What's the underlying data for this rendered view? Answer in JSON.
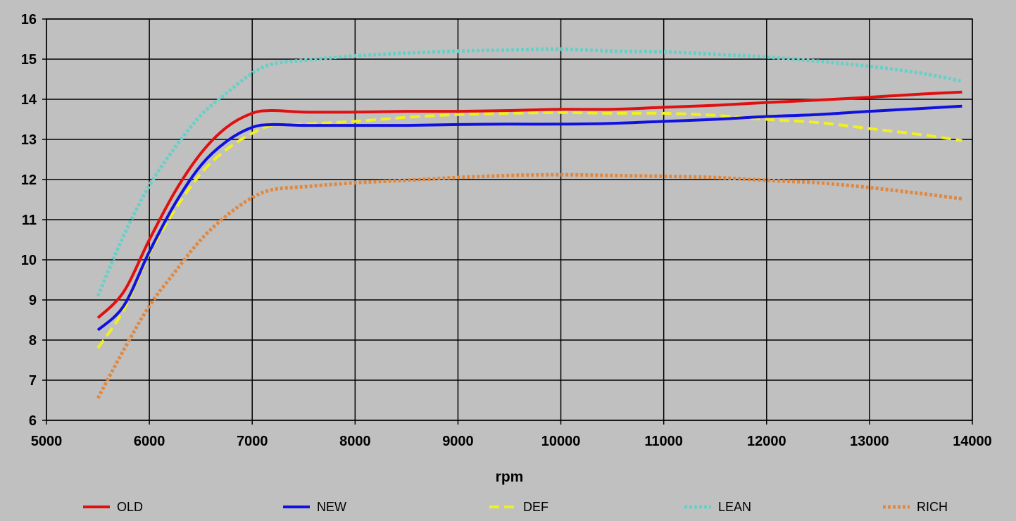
{
  "chart_data": {
    "type": "line",
    "title": "",
    "xlabel": "rpm",
    "ylabel": "",
    "xlim": [
      5000,
      14000
    ],
    "ylim": [
      6,
      16
    ],
    "x_ticks": [
      "5000",
      "6000",
      "7000",
      "8000",
      "9000",
      "10000",
      "11000",
      "12000",
      "13000",
      "14000"
    ],
    "y_ticks": [
      "6",
      "7",
      "8",
      "9",
      "10",
      "11",
      "12",
      "13",
      "14",
      "15",
      "16"
    ],
    "grid": true,
    "legend_position": "bottom",
    "series": [
      {
        "name": "OLD",
        "color": "#e01010",
        "dash": "solid",
        "points": [
          [
            5500,
            8.55
          ],
          [
            5750,
            9.2
          ],
          [
            6000,
            10.5
          ],
          [
            6250,
            11.7
          ],
          [
            6500,
            12.65
          ],
          [
            6750,
            13.3
          ],
          [
            7000,
            13.65
          ],
          [
            7200,
            13.72
          ],
          [
            7500,
            13.68
          ],
          [
            8000,
            13.68
          ],
          [
            8500,
            13.7
          ],
          [
            9000,
            13.7
          ],
          [
            9500,
            13.72
          ],
          [
            10000,
            13.75
          ],
          [
            10500,
            13.75
          ],
          [
            11000,
            13.8
          ],
          [
            11500,
            13.85
          ],
          [
            12000,
            13.92
          ],
          [
            12500,
            13.98
          ],
          [
            13000,
            14.05
          ],
          [
            13500,
            14.13
          ],
          [
            13900,
            14.18
          ]
        ]
      },
      {
        "name": "NEW",
        "color": "#1010e0",
        "dash": "solid",
        "points": [
          [
            5500,
            8.25
          ],
          [
            5750,
            8.85
          ],
          [
            6000,
            10.2
          ],
          [
            6250,
            11.4
          ],
          [
            6500,
            12.35
          ],
          [
            6750,
            12.95
          ],
          [
            7000,
            13.3
          ],
          [
            7200,
            13.37
          ],
          [
            7500,
            13.35
          ],
          [
            8000,
            13.35
          ],
          [
            8500,
            13.35
          ],
          [
            9000,
            13.37
          ],
          [
            9500,
            13.38
          ],
          [
            10000,
            13.38
          ],
          [
            10500,
            13.4
          ],
          [
            11000,
            13.45
          ],
          [
            11500,
            13.5
          ],
          [
            12000,
            13.57
          ],
          [
            12500,
            13.62
          ],
          [
            13000,
            13.7
          ],
          [
            13500,
            13.77
          ],
          [
            13900,
            13.83
          ]
        ]
      },
      {
        "name": "DEF",
        "color": "#f0f020",
        "dash": "dashed",
        "points": [
          [
            5500,
            7.8
          ],
          [
            5750,
            8.75
          ],
          [
            6000,
            10.15
          ],
          [
            6250,
            11.25
          ],
          [
            6500,
            12.15
          ],
          [
            6750,
            12.75
          ],
          [
            7000,
            13.15
          ],
          [
            7200,
            13.35
          ],
          [
            7500,
            13.38
          ],
          [
            8000,
            13.45
          ],
          [
            8500,
            13.55
          ],
          [
            9000,
            13.62
          ],
          [
            9500,
            13.65
          ],
          [
            10000,
            13.67
          ],
          [
            10500,
            13.65
          ],
          [
            11000,
            13.65
          ],
          [
            11500,
            13.6
          ],
          [
            12000,
            13.5
          ],
          [
            12500,
            13.42
          ],
          [
            13000,
            13.27
          ],
          [
            13500,
            13.12
          ],
          [
            13900,
            12.97
          ]
        ]
      },
      {
        "name": "LEAN",
        "color": "#66d0c8",
        "dash": "dotted",
        "points": [
          [
            5500,
            9.1
          ],
          [
            5750,
            10.6
          ],
          [
            6000,
            11.85
          ],
          [
            6250,
            12.8
          ],
          [
            6500,
            13.6
          ],
          [
            6750,
            14.15
          ],
          [
            7000,
            14.65
          ],
          [
            7200,
            14.88
          ],
          [
            7500,
            14.97
          ],
          [
            8000,
            15.08
          ],
          [
            8500,
            15.15
          ],
          [
            9000,
            15.2
          ],
          [
            9500,
            15.23
          ],
          [
            10000,
            15.25
          ],
          [
            10500,
            15.2
          ],
          [
            11000,
            15.18
          ],
          [
            11500,
            15.12
          ],
          [
            12000,
            15.05
          ],
          [
            12500,
            14.95
          ],
          [
            13000,
            14.82
          ],
          [
            13500,
            14.65
          ],
          [
            13900,
            14.45
          ]
        ]
      },
      {
        "name": "RICH",
        "color": "#e08840",
        "dash": "dotted",
        "points": [
          [
            5500,
            6.55
          ],
          [
            5750,
            7.75
          ],
          [
            6000,
            8.85
          ],
          [
            6250,
            9.7
          ],
          [
            6500,
            10.5
          ],
          [
            6750,
            11.1
          ],
          [
            7000,
            11.55
          ],
          [
            7200,
            11.75
          ],
          [
            7500,
            11.82
          ],
          [
            8000,
            11.92
          ],
          [
            8500,
            11.98
          ],
          [
            9000,
            12.05
          ],
          [
            9500,
            12.1
          ],
          [
            10000,
            12.12
          ],
          [
            10500,
            12.1
          ],
          [
            11000,
            12.08
          ],
          [
            11500,
            12.05
          ],
          [
            12000,
            11.98
          ],
          [
            12500,
            11.92
          ],
          [
            13000,
            11.8
          ],
          [
            13500,
            11.65
          ],
          [
            13900,
            11.52
          ]
        ]
      }
    ]
  }
}
